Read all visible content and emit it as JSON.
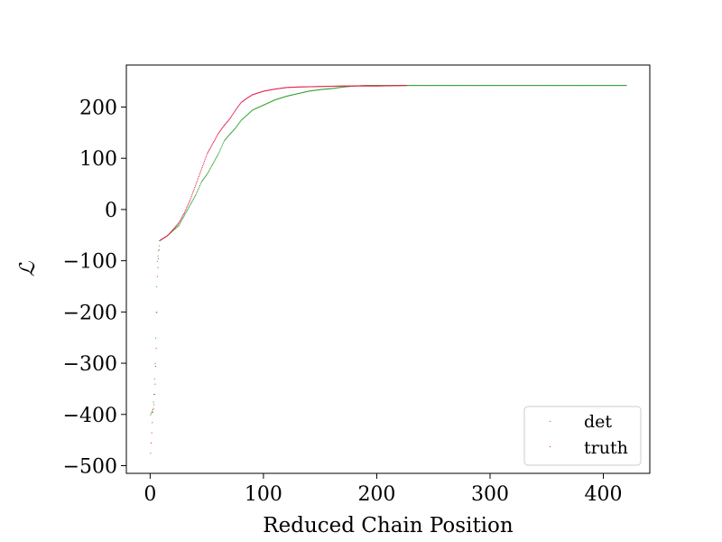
{
  "chart_data": {
    "type": "scatter",
    "title": "",
    "xlabel": "Reduced Chain Position",
    "ylabel": "ℒ",
    "xlim": [
      -21,
      441
    ],
    "ylim": [
      -515,
      282
    ],
    "x_ticks": [
      0,
      100,
      200,
      300,
      400
    ],
    "y_ticks": [
      -500,
      -400,
      -300,
      -200,
      -100,
      0,
      100,
      200
    ],
    "x_tick_labels": [
      "0",
      "100",
      "200",
      "300",
      "400"
    ],
    "y_tick_labels": [
      "−500",
      "−400",
      "−300",
      "−200",
      "−100",
      "0",
      "100",
      "200"
    ],
    "legend_position": "lower-right",
    "grid": false,
    "series": [
      {
        "name": "det",
        "color": "#2ca02c",
        "x_max": 420,
        "profile": [
          [
            0,
            -400
          ],
          [
            2,
            -390
          ],
          [
            3,
            -360
          ],
          [
            4,
            -300
          ],
          [
            5,
            -200
          ],
          [
            6,
            -100
          ],
          [
            8,
            -60
          ],
          [
            15,
            -50
          ],
          [
            20,
            -40
          ],
          [
            25,
            -30
          ],
          [
            30,
            -10
          ],
          [
            35,
            10
          ],
          [
            40,
            30
          ],
          [
            45,
            55
          ],
          [
            50,
            70
          ],
          [
            55,
            90
          ],
          [
            60,
            110
          ],
          [
            65,
            135
          ],
          [
            70,
            148
          ],
          [
            75,
            160
          ],
          [
            80,
            175
          ],
          [
            85,
            185
          ],
          [
            90,
            195
          ],
          [
            95,
            200
          ],
          [
            100,
            205
          ],
          [
            110,
            215
          ],
          [
            120,
            222
          ],
          [
            130,
            227
          ],
          [
            140,
            232
          ],
          [
            150,
            235
          ],
          [
            160,
            237
          ],
          [
            170,
            240
          ],
          [
            180,
            242
          ],
          [
            190,
            243
          ],
          [
            200,
            243
          ],
          [
            420,
            243
          ]
        ]
      },
      {
        "name": "truth",
        "color": "#e6194b",
        "x_max": 226,
        "profile": [
          [
            0,
            -475
          ],
          [
            2,
            -395
          ],
          [
            3,
            -380
          ],
          [
            4,
            -340
          ],
          [
            5,
            -270
          ],
          [
            6,
            -130
          ],
          [
            8,
            -60
          ],
          [
            15,
            -50
          ],
          [
            20,
            -38
          ],
          [
            25,
            -25
          ],
          [
            30,
            -5
          ],
          [
            35,
            20
          ],
          [
            40,
            50
          ],
          [
            45,
            80
          ],
          [
            50,
            110
          ],
          [
            55,
            130
          ],
          [
            60,
            150
          ],
          [
            65,
            165
          ],
          [
            70,
            178
          ],
          [
            75,
            195
          ],
          [
            80,
            210
          ],
          [
            85,
            218
          ],
          [
            90,
            225
          ],
          [
            100,
            232
          ],
          [
            110,
            236
          ],
          [
            120,
            239
          ],
          [
            130,
            240
          ],
          [
            150,
            241
          ],
          [
            170,
            242
          ],
          [
            200,
            242
          ],
          [
            226,
            243
          ]
        ]
      }
    ]
  }
}
